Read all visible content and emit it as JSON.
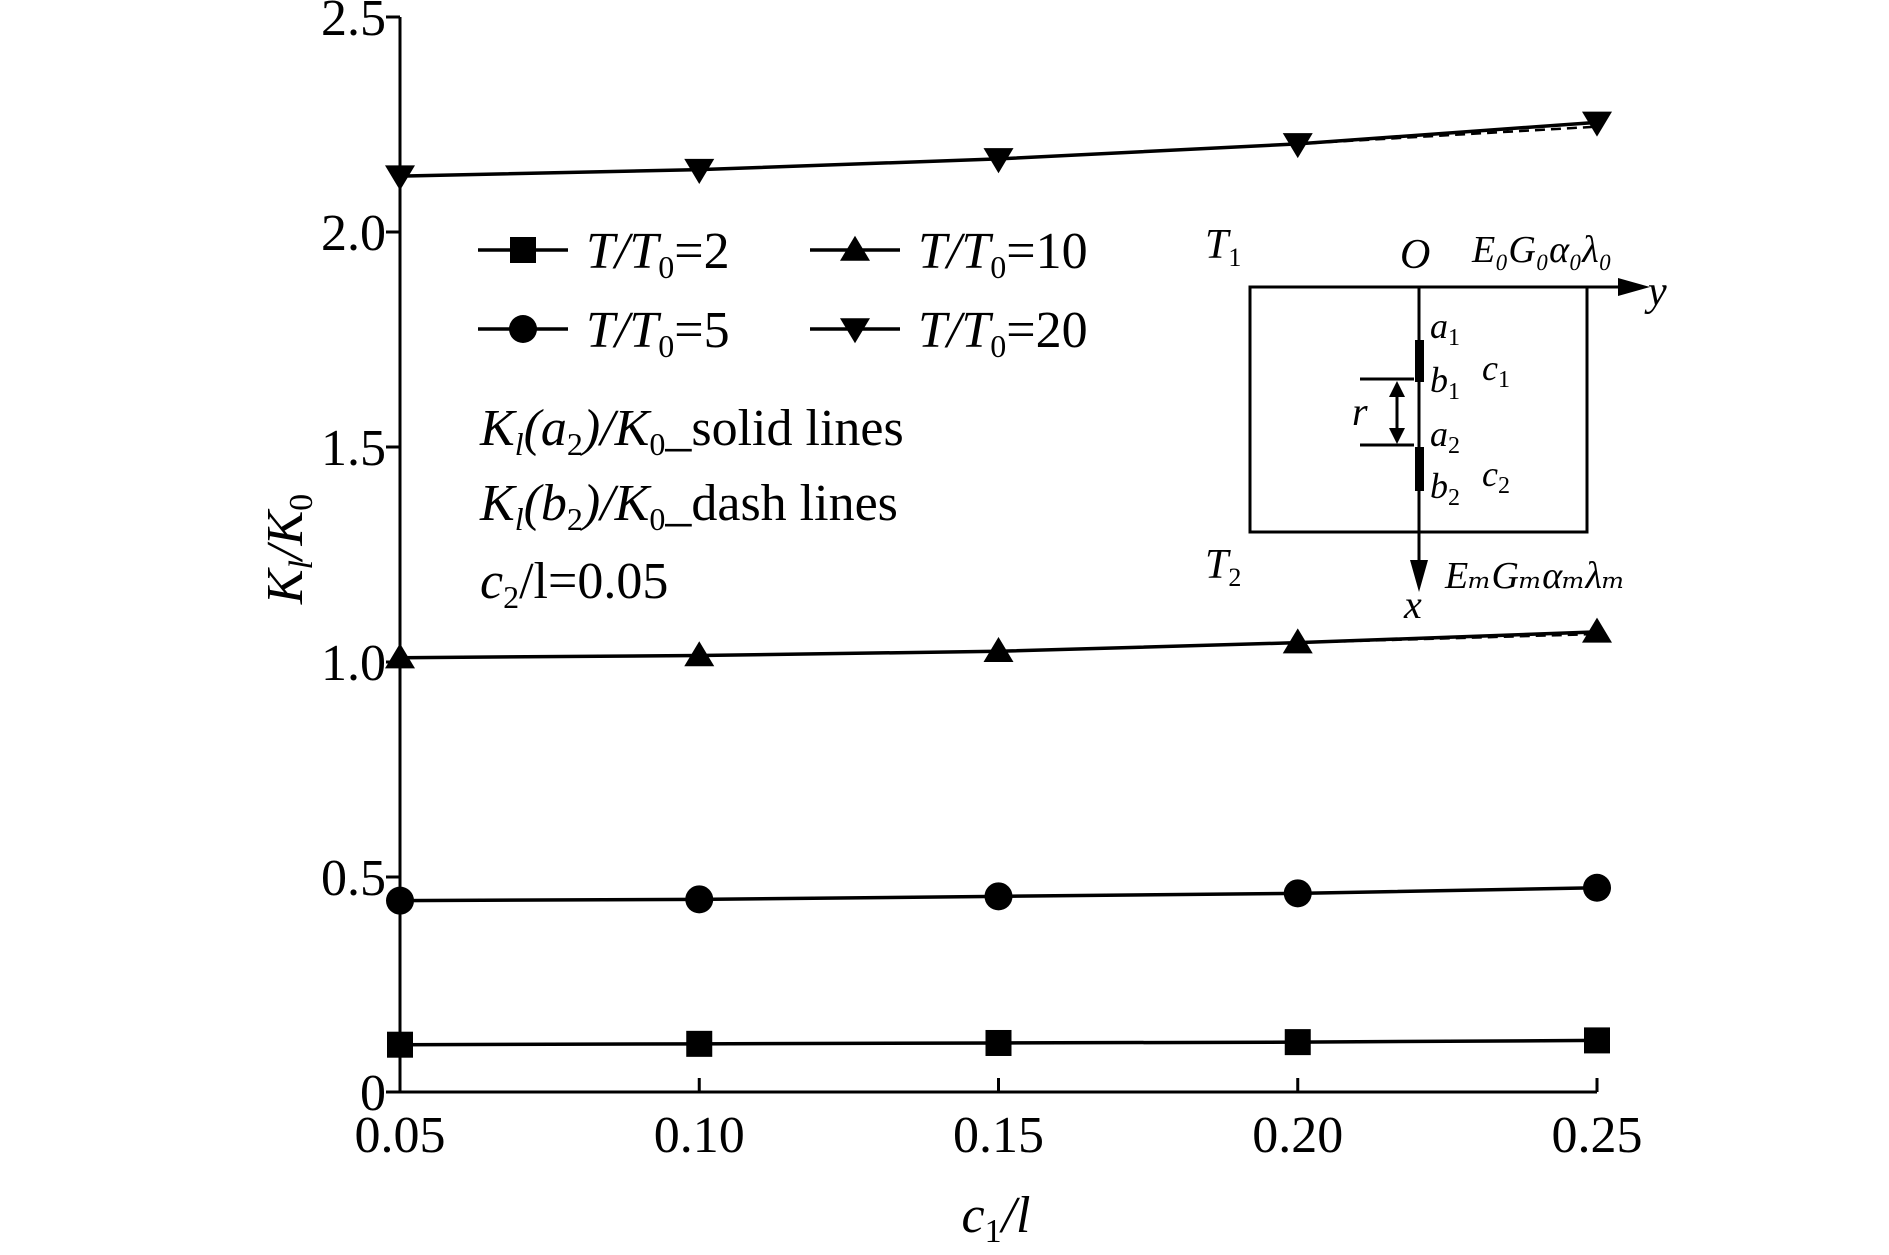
{
  "chart_data": {
    "type": "line",
    "title": "",
    "xlabel": {
      "base": "c",
      "sub": "1",
      "rest": "/l"
    },
    "ylabel": {
      "base": "K",
      "sub": "l",
      "rest": "/K",
      "sub2": "0"
    },
    "x": [
      0.05,
      0.1,
      0.15,
      0.2,
      0.25
    ],
    "x_tick_labels": [
      "0.05",
      "0.10",
      "0.15",
      "0.20",
      "0.25"
    ],
    "y_tick_values": [
      0,
      0.5,
      1.0,
      1.5,
      2.0,
      2.5
    ],
    "y_tick_labels": [
      "0",
      "0.5",
      "1.0",
      "1.5",
      "2.0",
      "2.5"
    ],
    "xlim": [
      0.05,
      0.25
    ],
    "ylim": [
      0,
      2.5
    ],
    "grid": false,
    "legend_position": "upper-left",
    "series": [
      {
        "name": "T/T0=2",
        "marker": "square",
        "solid": [
          0.11,
          0.112,
          0.114,
          0.116,
          0.12
        ],
        "dash": [
          0.11,
          0.112,
          0.114,
          0.116,
          0.12
        ]
      },
      {
        "name": "T/T0=5",
        "marker": "circle",
        "solid": [
          0.445,
          0.448,
          0.455,
          0.462,
          0.475
        ],
        "dash": [
          0.445,
          0.448,
          0.455,
          0.462,
          0.475
        ]
      },
      {
        "name": "T/T0=10",
        "marker": "triangle-up",
        "solid": [
          1.01,
          1.015,
          1.025,
          1.045,
          1.07
        ],
        "dash": [
          1.01,
          1.015,
          1.025,
          1.045,
          1.065
        ]
      },
      {
        "name": "T/T0=20",
        "marker": "triangle-down",
        "solid": [
          2.13,
          2.145,
          2.17,
          2.205,
          2.255
        ],
        "dash": [
          2.13,
          2.145,
          2.17,
          2.205,
          2.245
        ]
      }
    ],
    "legend_entries": [
      {
        "marker": "square",
        "label": {
          "a": "T/T",
          "sub": "0",
          "b": "=2"
        }
      },
      {
        "marker": "triangle-up",
        "label": {
          "a": "T/T",
          "sub": "0",
          "b": "=10"
        }
      },
      {
        "marker": "circle",
        "label": {
          "a": "T/T",
          "sub": "0",
          "b": "=5"
        }
      },
      {
        "marker": "triangle-down",
        "label": {
          "a": "T/T",
          "sub": "0",
          "b": "=20"
        }
      }
    ],
    "annotations": {
      "solid_note": {
        "a": "K",
        "sub1": "l",
        "b": "(a",
        "sub2": "2",
        "c": ")/K",
        "sub3": "0",
        "d": "_solid lines"
      },
      "dash_note": {
        "a": "K",
        "sub1": "l",
        "b": "(b",
        "sub2": "2",
        "c": ")/K",
        "sub3": "0",
        "d": "_dash lines"
      },
      "param_note": {
        "a": "c",
        "sub": "2",
        "b": "/l=0.05"
      }
    },
    "inset": {
      "T1": {
        "base": "T",
        "sub": "1"
      },
      "T2": {
        "base": "T",
        "sub": "2"
      },
      "origin": "O",
      "top_props": "E₀G₀α₀λ₀",
      "bottom_props": "EₘGₘαₘλₘ",
      "axis_y": "y",
      "axis_x": "x",
      "a1": {
        "base": "a",
        "sub": "1"
      },
      "b1": {
        "base": "b",
        "sub": "1"
      },
      "c1": {
        "base": "c",
        "sub": "1"
      },
      "a2": {
        "base": "a",
        "sub": "2"
      },
      "b2": {
        "base": "b",
        "sub": "2"
      },
      "c2": {
        "base": "c",
        "sub": "2"
      },
      "r": "r"
    }
  }
}
